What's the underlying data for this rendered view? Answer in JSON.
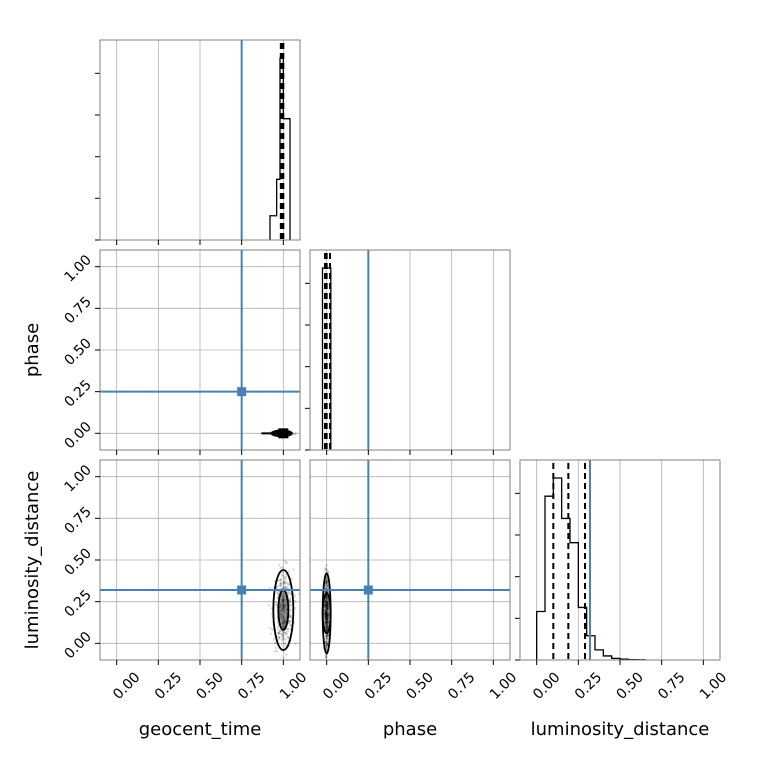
{
  "chart_data": {
    "type": "corner",
    "parameters": [
      "geocent_time",
      "phase",
      "luminosity_distance"
    ],
    "axis_range": [
      -0.1,
      1.1
    ],
    "tick_labels": [
      "0.00",
      "0.25",
      "0.50",
      "0.75",
      "1.00"
    ],
    "tick_values": [
      0.0,
      0.25,
      0.5,
      0.75,
      1.0
    ],
    "grid": true,
    "colors": {
      "truth": "#4682b4",
      "hist": "#000000",
      "grid": "#b0b0b0",
      "frame": "#808080",
      "scatter": "#000000"
    },
    "truths": {
      "geocent_time": 0.75,
      "phase": 0.25,
      "luminosity_distance": 0.32
    },
    "histograms": {
      "geocent_time": {
        "bins": [
          0.92,
          0.96,
          0.98,
          1.0,
          1.04
        ],
        "heights": [
          0.12,
          0.3,
          0.9,
          0.6
        ],
        "quantiles": [
          0.985,
          0.995,
          1.0
        ]
      },
      "phase": {
        "bins": [
          -0.025,
          0.0,
          0.025
        ],
        "heights": [
          0.9,
          0.9
        ],
        "quantiles": [
          -0.01,
          0.0,
          0.02
        ]
      },
      "luminosity_distance": {
        "bins": [
          0.0,
          0.05,
          0.1,
          0.15,
          0.2,
          0.25,
          0.3,
          0.35,
          0.4,
          0.45,
          0.5,
          0.55,
          0.6,
          0.65
        ],
        "heights": [
          0.24,
          0.81,
          0.9,
          0.7,
          0.58,
          0.26,
          0.12,
          0.05,
          0.02,
          0.008,
          0.004,
          0.002,
          0.001
        ],
        "quantiles": [
          0.1,
          0.19,
          0.29
        ]
      }
    },
    "samples_2d": {
      "geocent_time_vs_phase": {
        "center": [
          0.99,
          0.0
        ],
        "spread": [
          0.03,
          0.003
        ],
        "density_peak": [
          1.0,
          0.0
        ]
      },
      "geocent_time_vs_luminosity_distance": {
        "center": [
          1.0,
          0.2
        ],
        "spread": [
          0.03,
          0.12
        ]
      },
      "phase_vs_luminosity_distance": {
        "center": [
          0.0,
          0.18
        ],
        "spread": [
          0.006,
          0.12
        ]
      }
    }
  }
}
